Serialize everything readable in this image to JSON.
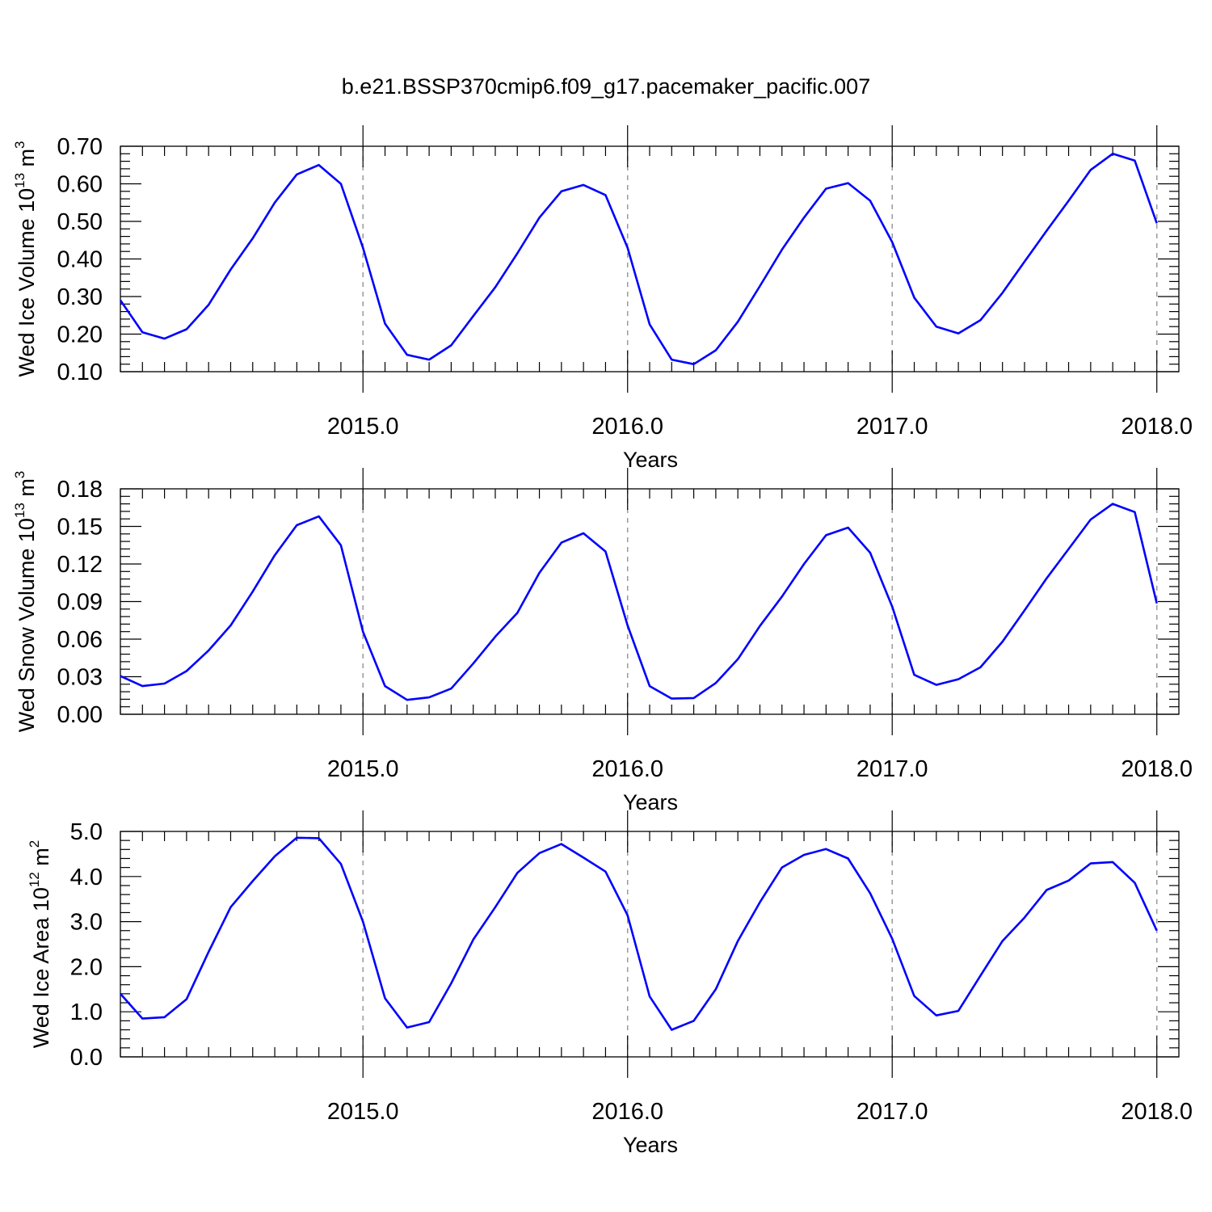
{
  "title": "b.e21.BSSP370cmip6.f09_g17.pacemaker_pacific.007",
  "colors": {
    "series": "#0000ff",
    "grid": "#9a9a9a",
    "axis": "#000000"
  },
  "chart_data": [
    {
      "type": "line",
      "title": "b.e21.BSSP370cmip6.f09_g17.pacemaker_pacific.007",
      "xlabel": "Years",
      "ylabel": {
        "name": "Wed Ice Volume 10",
        "exp": "13",
        "unit": " m",
        "unit_exp": "3"
      },
      "xlim": [
        2014.0833,
        2018.0833
      ],
      "ylim": [
        0.1,
        0.7
      ],
      "xticks": [
        2015.0,
        2016.0,
        2017.0,
        2018.0
      ],
      "xtick_labels": [
        "2015.0",
        "2016.0",
        "2017.0",
        "2018.0"
      ],
      "yticks": [
        0.1,
        0.2,
        0.3,
        0.4,
        0.5,
        0.6,
        0.7
      ],
      "ytick_labels": [
        "0.10",
        "0.20",
        "0.30",
        "0.40",
        "0.50",
        "0.60",
        "0.70"
      ],
      "grid": "vertical dashed at major x ticks",
      "x": [
        2014.0833,
        2014.1667,
        2014.25,
        2014.3333,
        2014.4167,
        2014.5,
        2014.5833,
        2014.6667,
        2014.75,
        2014.8333,
        2014.9167,
        2015.0,
        2015.0833,
        2015.1667,
        2015.25,
        2015.3333,
        2015.4167,
        2015.5,
        2015.5833,
        2015.6667,
        2015.75,
        2015.8333,
        2015.9167,
        2016.0,
        2016.0833,
        2016.1667,
        2016.25,
        2016.3333,
        2016.4167,
        2016.5,
        2016.5833,
        2016.6667,
        2016.75,
        2016.8333,
        2016.9167,
        2017.0,
        2017.0833,
        2017.1667,
        2017.25,
        2017.3333,
        2017.4167,
        2017.5,
        2017.5833,
        2017.6667,
        2017.75,
        2017.8333,
        2017.9167,
        2018.0
      ],
      "values": [
        0.29,
        0.205,
        0.188,
        0.213,
        0.278,
        0.372,
        0.455,
        0.55,
        0.625,
        0.65,
        0.6,
        0.43,
        0.228,
        0.145,
        0.132,
        0.17,
        0.248,
        0.325,
        0.415,
        0.51,
        0.58,
        0.597,
        0.57,
        0.43,
        0.226,
        0.132,
        0.12,
        0.157,
        0.233,
        0.328,
        0.425,
        0.51,
        0.587,
        0.602,
        0.555,
        0.445,
        0.297,
        0.22,
        0.202,
        0.237,
        0.31,
        0.393,
        0.475,
        0.555,
        0.637,
        0.68,
        0.662,
        0.495
      ]
    },
    {
      "type": "line",
      "xlabel": "Years",
      "ylabel": {
        "name": "Wed Snow Volume 10",
        "exp": "13",
        "unit": " m",
        "unit_exp": "3"
      },
      "xlim": [
        2014.0833,
        2018.0833
      ],
      "ylim": [
        0.0,
        0.18
      ],
      "xticks": [
        2015.0,
        2016.0,
        2017.0,
        2018.0
      ],
      "xtick_labels": [
        "2015.0",
        "2016.0",
        "2017.0",
        "2018.0"
      ],
      "yticks": [
        0.0,
        0.03,
        0.06,
        0.09,
        0.12,
        0.15,
        0.18
      ],
      "ytick_labels": [
        "0.00",
        "0.03",
        "0.06",
        "0.09",
        "0.12",
        "0.15",
        "0.18"
      ],
      "grid": "vertical dashed at major x ticks",
      "x": [
        2014.0833,
        2014.1667,
        2014.25,
        2014.3333,
        2014.4167,
        2014.5,
        2014.5833,
        2014.6667,
        2014.75,
        2014.8333,
        2014.9167,
        2015.0,
        2015.0833,
        2015.1667,
        2015.25,
        2015.3333,
        2015.4167,
        2015.5,
        2015.5833,
        2015.6667,
        2015.75,
        2015.8333,
        2015.9167,
        2016.0,
        2016.0833,
        2016.1667,
        2016.25,
        2016.3333,
        2016.4167,
        2016.5,
        2016.5833,
        2016.6667,
        2016.75,
        2016.8333,
        2016.9167,
        2017.0,
        2017.0833,
        2017.1667,
        2017.25,
        2017.3333,
        2017.4167,
        2017.5,
        2017.5833,
        2017.6667,
        2017.75,
        2017.8333,
        2017.9167,
        2018.0
      ],
      "values": [
        0.0305,
        0.0225,
        0.0245,
        0.0345,
        0.051,
        0.071,
        0.098,
        0.127,
        0.151,
        0.158,
        0.135,
        0.066,
        0.0225,
        0.0115,
        0.0135,
        0.0205,
        0.0405,
        0.062,
        0.081,
        0.113,
        0.137,
        0.1445,
        0.13,
        0.071,
        0.0225,
        0.0125,
        0.013,
        0.025,
        0.044,
        0.0705,
        0.094,
        0.12,
        0.143,
        0.149,
        0.129,
        0.086,
        0.0315,
        0.0235,
        0.028,
        0.0375,
        0.058,
        0.083,
        0.1085,
        0.132,
        0.1555,
        0.168,
        0.1615,
        0.0885
      ]
    },
    {
      "type": "line",
      "xlabel": "Years",
      "ylabel": {
        "name": "Wed Ice Area 10",
        "exp": "12",
        "unit": " m",
        "unit_exp": "2"
      },
      "xlim": [
        2014.0833,
        2018.0833
      ],
      "ylim": [
        0.0,
        5.0
      ],
      "xticks": [
        2015.0,
        2016.0,
        2017.0,
        2018.0
      ],
      "xtick_labels": [
        "2015.0",
        "2016.0",
        "2017.0",
        "2018.0"
      ],
      "yticks": [
        0.0,
        1.0,
        2.0,
        3.0,
        4.0,
        5.0
      ],
      "ytick_labels": [
        "0.0",
        "1.0",
        "2.0",
        "3.0",
        "4.0",
        "5.0"
      ],
      "grid": "vertical dashed at major x ticks",
      "x": [
        2014.0833,
        2014.1667,
        2014.25,
        2014.3333,
        2014.4167,
        2014.5,
        2014.5833,
        2014.6667,
        2014.75,
        2014.8333,
        2014.9167,
        2015.0,
        2015.0833,
        2015.1667,
        2015.25,
        2015.3333,
        2015.4167,
        2015.5,
        2015.5833,
        2015.6667,
        2015.75,
        2015.8333,
        2015.9167,
        2016.0,
        2016.0833,
        2016.1667,
        2016.25,
        2016.3333,
        2016.4167,
        2016.5,
        2016.5833,
        2016.6667,
        2016.75,
        2016.8333,
        2016.9167,
        2017.0,
        2017.0833,
        2017.1667,
        2017.25,
        2017.3333,
        2017.4167,
        2017.5,
        2017.5833,
        2017.6667,
        2017.75,
        2017.8333,
        2017.9167,
        2018.0
      ],
      "values": [
        1.4,
        0.85,
        0.88,
        1.28,
        2.33,
        3.32,
        3.9,
        4.45,
        4.86,
        4.85,
        4.28,
        3.0,
        1.3,
        0.65,
        0.77,
        1.63,
        2.6,
        3.32,
        4.08,
        4.52,
        4.72,
        4.42,
        4.11,
        3.14,
        1.34,
        0.6,
        0.8,
        1.5,
        2.57,
        3.43,
        4.2,
        4.48,
        4.61,
        4.4,
        3.63,
        2.62,
        1.35,
        0.92,
        1.02,
        1.8,
        2.57,
        3.09,
        3.7,
        3.91,
        4.29,
        4.32,
        3.86,
        2.8
      ]
    }
  ]
}
